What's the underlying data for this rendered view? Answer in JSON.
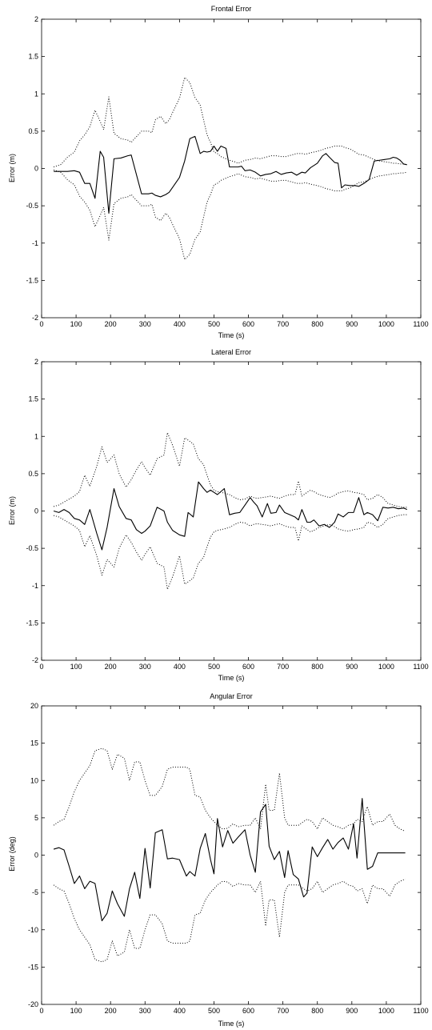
{
  "chart_data": [
    {
      "type": "line",
      "title": "Frontal Error",
      "xlabel": "Time (s)",
      "ylabel": "Error (m)",
      "xlim": [
        0,
        1100
      ],
      "ylim": [
        -2,
        2
      ],
      "xticks": [
        0,
        100,
        200,
        300,
        400,
        500,
        600,
        700,
        800,
        900,
        1000,
        1100
      ],
      "yticks": [
        -2,
        -1.5,
        -1,
        -0.5,
        0,
        0.5,
        1,
        1.5,
        2
      ],
      "x": [
        35,
        55,
        75,
        95,
        110,
        125,
        140,
        155,
        170,
        180,
        195,
        210,
        230,
        250,
        260,
        290,
        310,
        320,
        330,
        345,
        360,
        370,
        385,
        400,
        415,
        430,
        445,
        460,
        470,
        480,
        490,
        500,
        510,
        520,
        535,
        545,
        560,
        570,
        580,
        590,
        605,
        620,
        635,
        650,
        665,
        680,
        695,
        710,
        725,
        740,
        755,
        765,
        780,
        800,
        815,
        825,
        835,
        850,
        860,
        870,
        880,
        895,
        910,
        920,
        935,
        950,
        965,
        980,
        995,
        1010,
        1020,
        1030,
        1040,
        1050,
        1060
      ],
      "series": [
        {
          "style": "solid",
          "values": [
            -0.04,
            -0.04,
            -0.04,
            -0.03,
            -0.05,
            -0.2,
            -0.2,
            -0.4,
            0.23,
            0.15,
            -0.6,
            0.13,
            0.14,
            0.17,
            0.18,
            -0.34,
            -0.34,
            -0.33,
            -0.36,
            -0.38,
            -0.35,
            -0.32,
            -0.22,
            -0.12,
            0.1,
            0.4,
            0.43,
            0.2,
            0.23,
            0.22,
            0.23,
            0.3,
            0.23,
            0.3,
            0.27,
            0.02,
            0.02,
            0.02,
            0.03,
            -0.03,
            -0.02,
            -0.05,
            -0.1,
            -0.08,
            -0.07,
            -0.04,
            -0.08,
            -0.06,
            -0.05,
            -0.09,
            -0.05,
            -0.06,
            0.01,
            0.07,
            0.17,
            0.2,
            0.15,
            0.08,
            0.07,
            -0.26,
            -0.22,
            -0.23,
            -0.23,
            -0.24,
            -0.2,
            -0.15,
            0.1,
            0.11,
            0.12,
            0.13,
            0.15,
            0.14,
            0.11,
            0.06,
            0.05
          ]
        },
        {
          "style": "dotted",
          "values": [
            0.02,
            0.05,
            0.15,
            0.22,
            0.37,
            0.45,
            0.56,
            0.78,
            0.63,
            0.52,
            0.96,
            0.47,
            0.4,
            0.38,
            0.35,
            0.5,
            0.5,
            0.48,
            0.65,
            0.7,
            0.6,
            0.65,
            0.8,
            0.94,
            1.22,
            1.15,
            0.95,
            0.85,
            0.65,
            0.45,
            0.35,
            0.22,
            0.2,
            0.16,
            0.13,
            0.11,
            0.09,
            0.07,
            0.09,
            0.11,
            0.12,
            0.14,
            0.13,
            0.15,
            0.17,
            0.17,
            0.16,
            0.16,
            0.18,
            0.2,
            0.2,
            0.19,
            0.21,
            0.23,
            0.25,
            0.27,
            0.28,
            0.3,
            0.3,
            0.3,
            0.28,
            0.26,
            0.22,
            0.19,
            0.18,
            0.15,
            0.12,
            0.1,
            0.09,
            0.08,
            0.07,
            0.07,
            0.06,
            0.06,
            0.05
          ]
        },
        {
          "style": "dotted",
          "values": [
            -0.02,
            -0.05,
            -0.15,
            -0.22,
            -0.37,
            -0.45,
            -0.56,
            -0.78,
            -0.63,
            -0.52,
            -0.96,
            -0.47,
            -0.4,
            -0.38,
            -0.35,
            -0.5,
            -0.5,
            -0.48,
            -0.65,
            -0.7,
            -0.6,
            -0.65,
            -0.8,
            -0.94,
            -1.22,
            -1.15,
            -0.95,
            -0.85,
            -0.65,
            -0.45,
            -0.35,
            -0.22,
            -0.2,
            -0.16,
            -0.13,
            -0.11,
            -0.09,
            -0.07,
            -0.09,
            -0.11,
            -0.12,
            -0.14,
            -0.13,
            -0.15,
            -0.17,
            -0.17,
            -0.16,
            -0.16,
            -0.18,
            -0.2,
            -0.2,
            -0.19,
            -0.21,
            -0.23,
            -0.25,
            -0.27,
            -0.28,
            -0.3,
            -0.3,
            -0.3,
            -0.28,
            -0.26,
            -0.22,
            -0.19,
            -0.18,
            -0.15,
            -0.12,
            -0.1,
            -0.09,
            -0.08,
            -0.07,
            -0.07,
            -0.06,
            -0.06,
            -0.05
          ]
        }
      ]
    },
    {
      "type": "line",
      "title": "Lateral Error",
      "xlabel": "Time (s)",
      "ylabel": "Error (m)",
      "xlim": [
        0,
        1100
      ],
      "ylim": [
        -2,
        2
      ],
      "xticks": [
        0,
        100,
        200,
        300,
        400,
        500,
        600,
        700,
        800,
        900,
        1000,
        1100
      ],
      "yticks": [
        -2,
        -1.5,
        -1,
        -0.5,
        0,
        0.5,
        1,
        1.5,
        2
      ],
      "x": [
        35,
        50,
        65,
        80,
        95,
        110,
        125,
        140,
        160,
        175,
        190,
        210,
        225,
        245,
        260,
        275,
        290,
        300,
        315,
        335,
        355,
        365,
        380,
        400,
        415,
        425,
        440,
        455,
        470,
        480,
        490,
        500,
        510,
        530,
        545,
        560,
        575,
        590,
        605,
        615,
        625,
        640,
        655,
        665,
        680,
        690,
        705,
        720,
        735,
        745,
        755,
        770,
        780,
        790,
        805,
        820,
        835,
        850,
        860,
        875,
        890,
        905,
        920,
        935,
        945,
        960,
        975,
        990,
        1005,
        1020,
        1035,
        1050,
        1060
      ],
      "series": [
        {
          "style": "solid",
          "values": [
            0,
            -0.02,
            0.02,
            -0.02,
            -0.1,
            -0.12,
            -0.18,
            0.02,
            -0.3,
            -0.52,
            -0.22,
            0.3,
            0.06,
            -0.1,
            -0.12,
            -0.25,
            -0.3,
            -0.27,
            -0.2,
            0.05,
            0,
            -0.15,
            -0.26,
            -0.32,
            -0.34,
            -0.02,
            -0.08,
            0.39,
            0.3,
            0.25,
            0.28,
            0.25,
            0.22,
            0.3,
            -0.05,
            -0.03,
            -0.02,
            0.08,
            0.18,
            0.12,
            0.07,
            -0.08,
            0.1,
            -0.03,
            -0.02,
            0.08,
            -0.02,
            -0.05,
            -0.08,
            -0.12,
            0.02,
            -0.15,
            -0.15,
            -0.12,
            -0.2,
            -0.18,
            -0.22,
            -0.15,
            -0.04,
            -0.08,
            -0.02,
            -0.02,
            0.18,
            -0.05,
            -0.02,
            -0.05,
            -0.13,
            0.05,
            0.04,
            0.05,
            0.03,
            0.04,
            0.02
          ]
        },
        {
          "style": "dotted",
          "values": [
            0.06,
            0.08,
            0.12,
            0.16,
            0.2,
            0.26,
            0.48,
            0.33,
            0.6,
            0.86,
            0.65,
            0.75,
            0.5,
            0.32,
            0.42,
            0.55,
            0.66,
            0.58,
            0.48,
            0.7,
            0.75,
            1.05,
            0.88,
            0.6,
            0.98,
            0.95,
            0.9,
            0.7,
            0.62,
            0.48,
            0.35,
            0.28,
            0.26,
            0.24,
            0.22,
            0.18,
            0.15,
            0.16,
            0.2,
            0.18,
            0.17,
            0.18,
            0.19,
            0.2,
            0.18,
            0.17,
            0.2,
            0.22,
            0.22,
            0.4,
            0.2,
            0.25,
            0.28,
            0.26,
            0.22,
            0.2,
            0.18,
            0.21,
            0.24,
            0.26,
            0.27,
            0.25,
            0.24,
            0.22,
            0.15,
            0.17,
            0.22,
            0.18,
            0.1,
            0.08,
            0.06,
            0.05,
            0.05
          ]
        },
        {
          "style": "dotted",
          "values": [
            -0.06,
            -0.08,
            -0.12,
            -0.16,
            -0.2,
            -0.26,
            -0.48,
            -0.33,
            -0.6,
            -0.86,
            -0.65,
            -0.75,
            -0.5,
            -0.32,
            -0.42,
            -0.55,
            -0.66,
            -0.58,
            -0.48,
            -0.7,
            -0.75,
            -1.05,
            -0.88,
            -0.6,
            -0.98,
            -0.95,
            -0.9,
            -0.7,
            -0.62,
            -0.48,
            -0.35,
            -0.28,
            -0.26,
            -0.24,
            -0.22,
            -0.18,
            -0.15,
            -0.16,
            -0.2,
            -0.18,
            -0.17,
            -0.18,
            -0.19,
            -0.2,
            -0.18,
            -0.17,
            -0.2,
            -0.22,
            -0.22,
            -0.4,
            -0.2,
            -0.25,
            -0.28,
            -0.26,
            -0.22,
            -0.2,
            -0.18,
            -0.21,
            -0.24,
            -0.26,
            -0.27,
            -0.25,
            -0.24,
            -0.22,
            -0.15,
            -0.17,
            -0.22,
            -0.18,
            -0.1,
            -0.08,
            -0.06,
            -0.05,
            -0.05
          ]
        }
      ]
    },
    {
      "type": "line",
      "title": "Angular Error",
      "xlabel": "Time (s)",
      "ylabel": "Error (deg)",
      "xlim": [
        0,
        1100
      ],
      "ylim": [
        -20,
        20
      ],
      "xticks": [
        0,
        100,
        200,
        300,
        400,
        500,
        600,
        700,
        800,
        900,
        1000,
        1100
      ],
      "yticks": [
        -20,
        -15,
        -10,
        -5,
        0,
        5,
        10,
        15,
        20
      ],
      "x": [
        35,
        50,
        65,
        80,
        95,
        110,
        125,
        140,
        155,
        175,
        190,
        205,
        220,
        240,
        255,
        270,
        285,
        300,
        315,
        330,
        350,
        365,
        380,
        400,
        420,
        430,
        445,
        460,
        475,
        490,
        500,
        510,
        525,
        540,
        555,
        570,
        590,
        605,
        620,
        635,
        650,
        660,
        675,
        690,
        705,
        715,
        730,
        745,
        760,
        770,
        785,
        800,
        815,
        830,
        845,
        860,
        875,
        890,
        905,
        915,
        930,
        945,
        960,
        975,
        990,
        1010,
        1025,
        1040,
        1055
      ],
      "series": [
        {
          "style": "solid",
          "values": [
            0.8,
            1,
            0.7,
            -1.5,
            -3.8,
            -2.8,
            -4.5,
            -3.5,
            -3.8,
            -8.8,
            -7.8,
            -4.8,
            -6.5,
            -8.2,
            -4.5,
            -2.3,
            -5.8,
            0.9,
            -4.4,
            3,
            3.4,
            -0.5,
            -0.4,
            -0.6,
            -2.8,
            -2.2,
            -2.8,
            0.9,
            2.9,
            -0.6,
            -2.5,
            4.9,
            1.1,
            3.3,
            1.6,
            2.4,
            3.4,
            0,
            -2.3,
            5.8,
            6.8,
            1.2,
            -0.6,
            0.5,
            -3,
            0.6,
            -2.6,
            -3.2,
            -5.6,
            -5.1,
            1.1,
            -0.2,
            1,
            2.1,
            0.8,
            1.7,
            2.3,
            0.8,
            4.2,
            -0.4,
            7.6,
            -1.9,
            -1.5,
            0.3,
            0.3,
            0.3,
            0.3,
            0.3,
            0.3
          ]
        },
        {
          "style": "dotted",
          "values": [
            4,
            4.5,
            4.8,
            6.5,
            8.5,
            10,
            11,
            12,
            14,
            14.3,
            14,
            11.5,
            13.5,
            13,
            10,
            12.5,
            12.5,
            10,
            8,
            8,
            9.2,
            11.5,
            11.8,
            11.8,
            11.8,
            11.5,
            8,
            7.8,
            6,
            5,
            4.5,
            4,
            3.5,
            3.6,
            4.2,
            3.8,
            4,
            4,
            5,
            3.5,
            9.5,
            6,
            6,
            11,
            5,
            4,
            4,
            4,
            4.5,
            4.8,
            4.5,
            3.5,
            5,
            4.5,
            4,
            3.8,
            3.5,
            4,
            4.2,
            4.8,
            4.5,
            6.5,
            4,
            4.5,
            4.5,
            5.5,
            4,
            3.5,
            3.2
          ]
        },
        {
          "style": "dotted",
          "values": [
            -4,
            -4.5,
            -4.8,
            -6.5,
            -8.5,
            -10,
            -11,
            -12,
            -14,
            -14.3,
            -14,
            -11.5,
            -13.5,
            -13,
            -10,
            -12.5,
            -12.5,
            -10,
            -8,
            -8,
            -9.2,
            -11.5,
            -11.8,
            -11.8,
            -11.8,
            -11.5,
            -8,
            -7.8,
            -6,
            -5,
            -4.5,
            -4,
            -3.5,
            -3.6,
            -4.2,
            -3.8,
            -4,
            -4,
            -5,
            -3.5,
            -9.5,
            -6,
            -6,
            -11,
            -5,
            -4,
            -4,
            -4,
            -4.5,
            -4.8,
            -4.5,
            -3.5,
            -5,
            -4.5,
            -4,
            -3.8,
            -3.5,
            -4,
            -4.2,
            -4.8,
            -4.5,
            -6.5,
            -4,
            -4.5,
            -4.5,
            -5.5,
            -4,
            -3.5,
            -3.2
          ]
        }
      ]
    }
  ]
}
